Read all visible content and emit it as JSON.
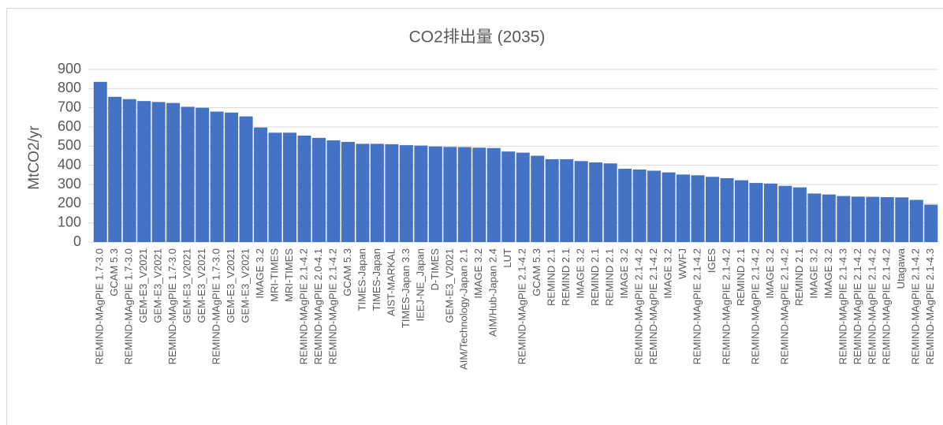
{
  "chart_data": {
    "type": "bar",
    "title": "CO2排出量 (2035)",
    "ylabel": "MtCO2/yr",
    "categories": [
      "REMIND-MAgPIE 1.7-3.0",
      "GCAM 5.3",
      "REMIND-MAgPIE 1.7-3.0",
      "GEM-E3_V2021",
      "GEM-E3_V2021",
      "REMIND-MAgPIE 1.7-3.0",
      "GEM-E3_V2021",
      "GEM-E3_V2021",
      "REMIND-MAgPIE 1.7-3.0",
      "GEM-E3_V2021",
      "GEM-E3_V2021",
      "IMAGE 3.2",
      "MRI-TIMES",
      "MRI-TIMES",
      "REMIND-MAgPIE 2.1-4.2",
      "REMIND-MAgPIE 2.0-4.1",
      "REMIND-MAgPIE 2.1-4.2",
      "GCAM 5.3",
      "TIMES-Japan",
      "TIMES-Japan",
      "AIST-MARKAL",
      "TIMES-Japan 3.3",
      "IEEJ-NE_Japan",
      "D-TIMES",
      "GEM-E3_V2021",
      "AIM/Technology-Japan 2.1",
      "IMAGE 3.2",
      "AIM/Hub-Japan 2.4",
      "LUT",
      "REMIND-MAgPIE 2.1-4.2",
      "GCAM 5.3",
      "REMIND 2.1",
      "REMIND 2.1",
      "IMAGE 3.2",
      "REMIND 2.1",
      "REMIND 2.1",
      "IMAGE 3.2",
      "REMIND-MAgPIE 2.1-4.2",
      "REMIND-MAgPIE 2.1-4.2",
      "IMAGE 3.2",
      "WWFJ",
      "REMIND-MAgPIE 2.1-4.2",
      "IGES",
      "REMIND-MAgPIE 2.1-4.2",
      "REMIND 2.1",
      "REMIND-MAgPIE 2.1-4.2",
      "IMAGE 3.2",
      "REMIND-MAgPIE 2.1-4.2",
      "REMIND 2.1",
      "IMAGE 3.2",
      "IMAGE 3.2",
      "REMIND-MAgPIE 2.1-4.3",
      "REMIND-MAgPIE 2.1-4.2",
      "REMIND-MAgPIE 2.1-4.2",
      "REMIND-MAgPIE 2.1-4.2",
      "Utagawa",
      "REMIND-MAgPIE 2.1-4.2",
      "REMIND-MAgPIE 2.1-4.3"
    ],
    "values": [
      835,
      757,
      745,
      735,
      730,
      725,
      705,
      700,
      680,
      675,
      655,
      597,
      570,
      570,
      555,
      543,
      530,
      522,
      512,
      512,
      510,
      505,
      503,
      498,
      496,
      495,
      492,
      490,
      472,
      466,
      450,
      432,
      432,
      422,
      415,
      410,
      382,
      378,
      372,
      363,
      352,
      348,
      340,
      333,
      322,
      308,
      305,
      293,
      285,
      253,
      248,
      240,
      237,
      236,
      234,
      233,
      220,
      195
    ],
    "color": "#4472c4",
    "ylim": [
      0,
      900
    ],
    "yticks": [
      0,
      100,
      200,
      300,
      400,
      500,
      600,
      700,
      800,
      900
    ],
    "grid": true
  }
}
